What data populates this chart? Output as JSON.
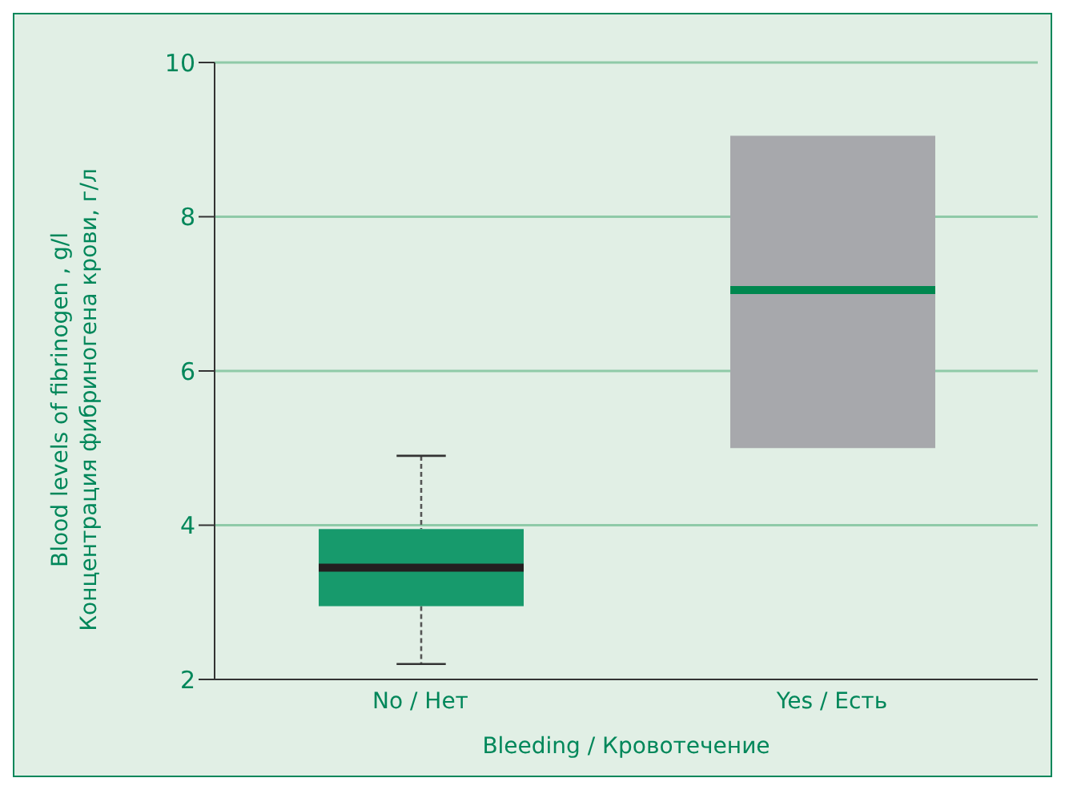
{
  "chart_data": {
    "type": "box",
    "xlabel": "Bleeding / Кровотечение",
    "ylabel": "Blood levels of fibrinogen , g/l\nКонцентрация фибриногена крови, г/л",
    "categories": [
      "No / Нет",
      "Yes / Есть"
    ],
    "boxes": [
      {
        "low": 2.2,
        "q1": 2.95,
        "median": 3.45,
        "q3": 3.95,
        "high": 4.9
      },
      {
        "low": 5.0,
        "q1": 5.0,
        "median": 7.05,
        "q3": 9.05,
        "high": 9.05
      }
    ],
    "colors": [
      "#179a6c",
      "#a7a8ac"
    ],
    "ylim": [
      2,
      10
    ],
    "yticks": [
      2,
      4,
      6,
      8,
      10
    ],
    "grid": "y"
  }
}
